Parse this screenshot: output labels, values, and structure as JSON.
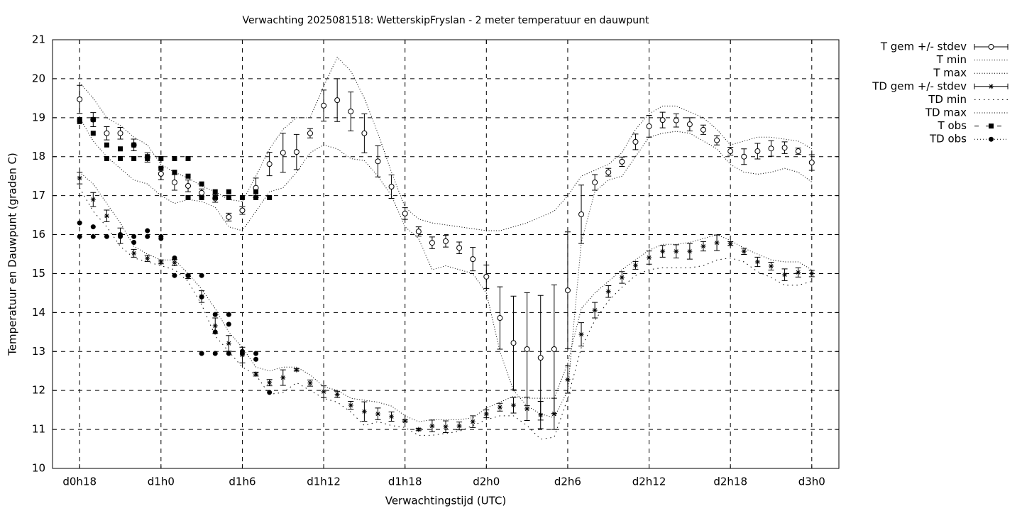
{
  "chart_data": {
    "type": "line",
    "title": "Verwachting 2025081518: WetterskipFryslan - 2 meter temperatuur en dauwpunt",
    "xlabel": "Verwachtingstijd (UTC)",
    "ylabel": "Temperatuur en Dauwpunt (graden C)",
    "xlim": [
      16,
      74
    ],
    "ylim": [
      10,
      21
    ],
    "xticks": [
      {
        "value": 18,
        "label": "d0h18"
      },
      {
        "value": 24,
        "label": "d1h0"
      },
      {
        "value": 30,
        "label": "d1h6"
      },
      {
        "value": 36,
        "label": "d1h12"
      },
      {
        "value": 42,
        "label": "d1h18"
      },
      {
        "value": 48,
        "label": "d2h0"
      },
      {
        "value": 54,
        "label": "d2h6"
      },
      {
        "value": 60,
        "label": "d2h12"
      },
      {
        "value": 66,
        "label": "d2h18"
      },
      {
        "value": 72,
        "label": "d3h0"
      }
    ],
    "yticks": [
      10,
      11,
      12,
      13,
      14,
      15,
      16,
      17,
      18,
      19,
      20,
      21
    ],
    "grid": true,
    "legend": "outside-right",
    "x": [
      18,
      19,
      20,
      21,
      22,
      23,
      24,
      25,
      26,
      27,
      28,
      29,
      30,
      31,
      32,
      33,
      34,
      35,
      36,
      37,
      38,
      39,
      40,
      41,
      42,
      43,
      44,
      45,
      46,
      47,
      48,
      49,
      50,
      51,
      52,
      53,
      54,
      55,
      56,
      57,
      58,
      59,
      60,
      61,
      62,
      63,
      64,
      65,
      66,
      67,
      68,
      69,
      70,
      71,
      72
    ],
    "series": [
      {
        "name": "T gem +/- stdev",
        "style": "errorbar",
        "marker": "circle",
        "color": "#000000",
        "values": [
          19.47,
          18.95,
          18.6,
          18.6,
          18.3,
          17.98,
          17.56,
          17.34,
          17.25,
          17.07,
          16.93,
          16.45,
          16.62,
          17.2,
          17.81,
          18.1,
          18.12,
          18.6,
          19.31,
          19.45,
          19.16,
          18.6,
          17.88,
          17.23,
          16.54,
          16.08,
          15.79,
          15.83,
          15.66,
          15.37,
          14.92,
          13.86,
          13.22,
          13.06,
          12.84,
          13.06,
          14.57,
          16.52,
          17.34,
          17.6,
          17.87,
          18.38,
          18.78,
          18.94,
          18.93,
          18.83,
          18.69,
          18.42,
          18.14,
          18.0,
          18.14,
          18.21,
          18.23,
          18.14,
          17.85
        ],
        "errors": [
          0.36,
          0.18,
          0.17,
          0.15,
          0.15,
          0.12,
          0.15,
          0.2,
          0.15,
          0.1,
          0.1,
          0.1,
          0.1,
          0.25,
          0.3,
          0.5,
          0.45,
          0.12,
          0.4,
          0.55,
          0.5,
          0.5,
          0.4,
          0.3,
          0.15,
          0.12,
          0.15,
          0.15,
          0.15,
          0.3,
          0.3,
          0.8,
          1.2,
          1.45,
          1.6,
          1.65,
          1.5,
          0.75,
          0.2,
          0.1,
          0.12,
          0.2,
          0.28,
          0.2,
          0.17,
          0.17,
          0.12,
          0.12,
          0.1,
          0.2,
          0.2,
          0.2,
          0.15,
          0.08,
          0.2
        ]
      },
      {
        "name": "T min",
        "style": "dotted",
        "color": "#000000",
        "values": [
          19.0,
          18.4,
          18.0,
          17.7,
          17.4,
          17.3,
          17.0,
          16.8,
          16.9,
          16.85,
          16.7,
          16.2,
          16.1,
          16.6,
          17.1,
          17.2,
          17.6,
          18.1,
          18.3,
          18.2,
          17.95,
          17.9,
          17.5,
          17.0,
          16.2,
          15.9,
          15.1,
          15.2,
          15.1,
          15.0,
          14.5,
          13.0,
          12.0,
          11.6,
          11.4,
          11.3,
          12.0,
          15.8,
          17.1,
          17.4,
          17.5,
          18.0,
          18.5,
          18.6,
          18.65,
          18.6,
          18.4,
          18.2,
          17.8,
          17.6,
          17.55,
          17.6,
          17.7,
          17.6,
          17.35
        ]
      },
      {
        "name": "T max",
        "style": "dotted",
        "color": "#000000",
        "values": [
          19.9,
          19.5,
          19.0,
          18.8,
          18.5,
          18.3,
          17.8,
          17.6,
          17.45,
          17.25,
          17.1,
          16.9,
          16.85,
          17.5,
          18.2,
          18.7,
          19.0,
          19.0,
          19.8,
          20.55,
          20.2,
          19.5,
          18.6,
          17.6,
          16.7,
          16.4,
          16.3,
          16.25,
          16.2,
          16.15,
          16.1,
          16.1,
          16.2,
          16.3,
          16.45,
          16.6,
          17.0,
          17.5,
          17.65,
          17.8,
          18.1,
          18.7,
          19.1,
          19.3,
          19.3,
          19.15,
          19.0,
          18.7,
          18.3,
          18.4,
          18.5,
          18.5,
          18.45,
          18.4,
          18.2
        ]
      },
      {
        "name": "TD gem +/- stdev",
        "style": "errorbar",
        "marker": "asterisk",
        "color": "#000000",
        "values": [
          17.45,
          16.9,
          16.48,
          15.97,
          15.52,
          15.39,
          15.3,
          15.28,
          14.92,
          14.41,
          13.66,
          13.21,
          12.91,
          12.42,
          12.2,
          12.33,
          12.53,
          12.19,
          11.97,
          11.9,
          11.62,
          11.46,
          11.4,
          11.33,
          11.22,
          11.0,
          11.09,
          11.07,
          11.09,
          11.2,
          11.4,
          11.57,
          11.62,
          11.53,
          11.37,
          11.4,
          12.28,
          13.44,
          14.06,
          14.54,
          14.9,
          15.21,
          15.41,
          15.57,
          15.57,
          15.57,
          15.7,
          15.79,
          15.77,
          15.57,
          15.3,
          15.19,
          14.97,
          15.03,
          15.0
        ],
        "errors": [
          0.15,
          0.18,
          0.15,
          0.2,
          0.1,
          0.08,
          0.05,
          0.08,
          0.05,
          0.15,
          0.2,
          0.2,
          0.2,
          0.05,
          0.08,
          0.2,
          0.03,
          0.08,
          0.15,
          0.08,
          0.1,
          0.25,
          0.15,
          0.12,
          0.03,
          0.03,
          0.15,
          0.15,
          0.1,
          0.15,
          0.1,
          0.1,
          0.2,
          0.3,
          0.35,
          0.4,
          0.35,
          0.3,
          0.2,
          0.15,
          0.15,
          0.1,
          0.17,
          0.15,
          0.17,
          0.2,
          0.12,
          0.2,
          0.05,
          0.08,
          0.12,
          0.1,
          0.15,
          0.12,
          0.08
        ]
      },
      {
        "name": "TD min",
        "style": "dotted-wide",
        "color": "#000000",
        "values": [
          17.2,
          16.6,
          16.2,
          15.7,
          15.4,
          15.3,
          15.2,
          15.1,
          14.8,
          14.2,
          13.4,
          13.0,
          12.6,
          12.4,
          11.9,
          11.95,
          12.2,
          12.0,
          11.8,
          11.7,
          11.45,
          11.1,
          11.2,
          11.1,
          11.05,
          10.85,
          10.85,
          10.9,
          10.95,
          11.1,
          11.25,
          11.35,
          11.35,
          11.1,
          10.75,
          10.8,
          11.8,
          13.1,
          13.8,
          14.3,
          14.65,
          14.95,
          15.1,
          15.15,
          15.15,
          15.15,
          15.2,
          15.35,
          15.4,
          15.3,
          15.05,
          14.9,
          14.7,
          14.7,
          14.8
        ]
      },
      {
        "name": "TD max",
        "style": "dotted",
        "color": "#000000",
        "values": [
          17.6,
          17.3,
          16.8,
          16.3,
          15.7,
          15.5,
          15.35,
          15.35,
          15.0,
          14.6,
          14.1,
          13.5,
          13.1,
          12.6,
          12.5,
          12.6,
          12.6,
          12.4,
          12.1,
          12.0,
          11.8,
          11.75,
          11.7,
          11.6,
          11.35,
          11.2,
          11.25,
          11.25,
          11.25,
          11.3,
          11.55,
          11.7,
          11.85,
          11.8,
          11.8,
          11.8,
          12.7,
          14.1,
          14.5,
          14.8,
          15.1,
          15.35,
          15.6,
          15.75,
          15.75,
          15.8,
          15.9,
          16.0,
          15.85,
          15.65,
          15.5,
          15.35,
          15.3,
          15.3,
          15.1
        ]
      },
      {
        "name": "T obs",
        "style": "points",
        "marker": "square",
        "color": "#000000",
        "x": [
          18,
          18,
          19,
          19,
          20,
          20,
          21,
          21,
          22,
          22,
          23,
          23,
          24,
          24,
          25,
          25,
          26,
          26,
          26,
          27,
          27,
          28,
          28,
          29,
          29,
          30,
          31,
          31,
          32
        ],
        "values": [
          18.9,
          18.95,
          18.95,
          18.6,
          18.3,
          17.95,
          18.2,
          17.95,
          18.3,
          17.95,
          18.0,
          17.95,
          17.95,
          17.7,
          17.95,
          17.6,
          17.95,
          17.5,
          16.95,
          17.3,
          16.95,
          17.1,
          16.95,
          17.1,
          16.95,
          16.95,
          17.1,
          16.95,
          16.95
        ]
      },
      {
        "name": "TD obs",
        "style": "points",
        "marker": "dot",
        "color": "#000000",
        "x": [
          18,
          18,
          19,
          19,
          20,
          21,
          21,
          22,
          22,
          23,
          23,
          24,
          24,
          25,
          25,
          26,
          27,
          27,
          27,
          28,
          28,
          28,
          29,
          29,
          29,
          30,
          30,
          31,
          31,
          32
        ],
        "values": [
          16.3,
          15.95,
          16.2,
          15.95,
          15.95,
          16.0,
          15.95,
          15.8,
          15.95,
          16.1,
          15.95,
          15.95,
          15.9,
          15.4,
          14.95,
          14.95,
          14.95,
          14.4,
          12.95,
          13.95,
          13.5,
          12.95,
          13.95,
          13.7,
          12.95,
          13.0,
          12.95,
          12.95,
          12.8,
          11.95
        ]
      }
    ]
  }
}
